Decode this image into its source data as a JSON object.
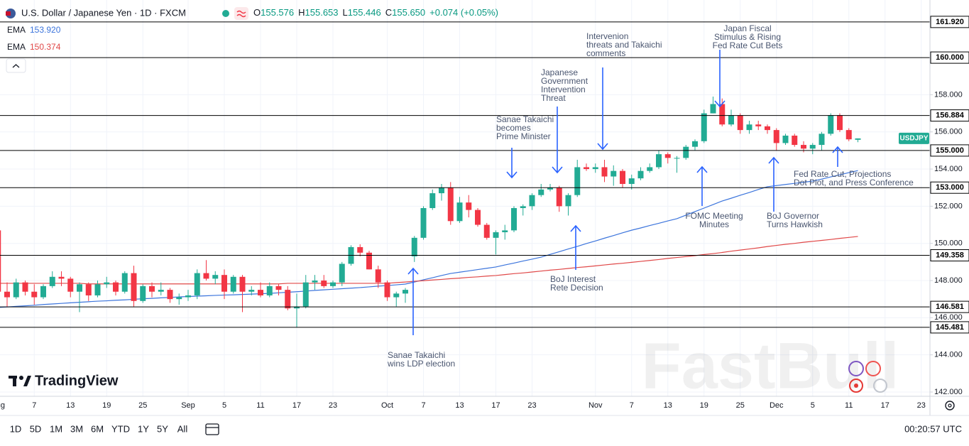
{
  "header": {
    "title": "U.S. Dollar / Japanese Yen · 1D · FXCM",
    "ohlc": [
      {
        "key": "O",
        "value": "155.576"
      },
      {
        "key": "H",
        "value": "155.653"
      },
      {
        "key": "L",
        "value": "155.446"
      },
      {
        "key": "C",
        "value": "155.650"
      }
    ],
    "change": "+0.074 (+0.05%)"
  },
  "logo": "TradingView",
  "watermark": "FastBull",
  "toolbar": {
    "ranges": [
      "1D",
      "5D",
      "1M",
      "3M",
      "6M",
      "YTD",
      "1Y",
      "5Y",
      "All"
    ],
    "clock": "00:20:57 UTC"
  },
  "chart_data": {
    "type": "candlestick",
    "symbol": "USDJPY",
    "up_color": "#22ab94",
    "down_color": "#f23645",
    "ylim": [
      141.77,
      163.1
    ],
    "yticks": [
      {
        "value": 142,
        "label": "142.000"
      },
      {
        "value": 144,
        "label": "144.000"
      },
      {
        "value": 146,
        "label": "146.000"
      },
      {
        "value": 148,
        "label": "148.000"
      },
      {
        "value": 150,
        "label": "150.000"
      },
      {
        "value": 152,
        "label": "152.000"
      },
      {
        "value": 154,
        "label": "154.000"
      },
      {
        "value": 156,
        "label": "156.000"
      },
      {
        "value": 158,
        "label": "158.000"
      }
    ],
    "grid": true,
    "categories": [
      "Aug",
      null,
      null,
      null,
      "7",
      null,
      null,
      null,
      "13",
      null,
      null,
      null,
      "19",
      null,
      null,
      null,
      "25",
      null,
      null,
      null,
      null,
      "Sep",
      null,
      null,
      null,
      "5",
      null,
      null,
      null,
      "11",
      null,
      null,
      null,
      "17",
      null,
      null,
      null,
      "23",
      null,
      null,
      null,
      null,
      null,
      "Oct",
      null,
      null,
      null,
      "7",
      null,
      null,
      null,
      "13",
      null,
      null,
      null,
      "17",
      null,
      null,
      null,
      "23",
      null,
      null,
      null,
      null,
      null,
      null,
      "Nov",
      null,
      null,
      null,
      "7",
      null,
      null,
      null,
      "13",
      null,
      null,
      null,
      "19",
      null,
      null,
      null,
      "25",
      null,
      null,
      null,
      "Dec",
      null,
      null,
      null,
      "5",
      null,
      null,
      null,
      "11",
      null,
      null,
      null,
      "17",
      null,
      null,
      null,
      "23"
    ],
    "open": [
      150.7,
      147.4,
      147.1,
      147.9,
      147.4,
      147.1,
      147.7,
      148.2,
      148.1,
      147.4,
      147.8,
      147.2,
      147.8,
      147.9,
      147.4,
      148.4,
      146.9,
      147.7,
      147.4,
      147.5,
      147.0,
      147.1,
      147.2,
      148.4,
      148.1,
      148.3,
      147.4,
      148.2,
      147.4,
      147.5,
      147.2,
      147.7,
      147.5,
      146.5,
      146.6,
      147.9,
      148.0,
      147.7,
      147.9,
      148.9,
      149.8,
      149.5,
      148.6,
      147.9,
      147.1,
      147.3,
      149.3,
      150.3,
      151.9,
      152.7,
      153.0,
      151.2,
      152.2,
      151.8,
      151.0,
      150.3,
      150.6,
      150.7,
      151.9,
      152.0,
      152.6,
      152.9,
      153.0,
      152.0,
      152.6,
      154.1,
      154.0,
      154.1,
      153.6,
      153.9,
      153.2,
      153.5,
      153.9,
      154.1,
      154.8,
      154.6,
      154.6,
      155.2,
      155.5,
      157.0,
      157.5,
      156.4,
      156.9,
      156.1,
      156.4,
      156.3,
      156.1,
      155.4,
      155.8,
      155.3,
      155.1,
      155.3,
      155.9,
      156.9,
      156.1,
      155.576,
      null,
      null,
      null,
      null,
      null,
      null,
      null
    ],
    "high": [
      150.9,
      147.9,
      148.1,
      148.0,
      147.8,
      147.8,
      148.5,
      148.5,
      148.2,
      147.9,
      147.9,
      148.0,
      148.2,
      148.0,
      148.5,
      148.8,
      147.8,
      147.9,
      147.9,
      147.6,
      147.3,
      147.5,
      148.6,
      149.1,
      148.5,
      148.6,
      148.3,
      148.3,
      147.7,
      147.9,
      147.9,
      147.8,
      147.7,
      147.3,
      148.3,
      148.3,
      148.3,
      148.0,
      149.0,
      149.9,
      149.95,
      149.6,
      148.8,
      148.0,
      147.4,
      147.6,
      150.4,
      152.0,
      152.9,
      153.2,
      153.3,
      152.5,
      152.6,
      151.9,
      151.1,
      150.7,
      151.0,
      152.0,
      152.1,
      152.7,
      153.2,
      153.2,
      153.1,
      152.7,
      154.5,
      154.3,
      154.3,
      154.5,
      154.2,
      154.0,
      153.7,
      154.1,
      154.3,
      155.0,
      154.9,
      154.7,
      155.3,
      155.6,
      157.2,
      157.9,
      157.8,
      157.2,
      157.0,
      156.6,
      156.6,
      156.4,
      156.2,
      155.9,
      155.9,
      155.5,
      155.4,
      156.0,
      157.0,
      157.0,
      156.2,
      155.653,
      null,
      null,
      null,
      null,
      null,
      null,
      null
    ],
    "low": [
      147.3,
      146.6,
      147.0,
      147.2,
      146.7,
      147.0,
      147.6,
      147.7,
      147.1,
      146.3,
      146.9,
      147.1,
      147.6,
      147.2,
      147.3,
      146.6,
      146.8,
      147.1,
      147.2,
      146.8,
      146.7,
      146.9,
      147.0,
      148.0,
      147.8,
      147.0,
      147.3,
      146.3,
      147.2,
      147.1,
      147.1,
      147.2,
      146.4,
      145.48,
      146.5,
      147.5,
      147.6,
      147.6,
      147.7,
      148.8,
      149.3,
      148.6,
      147.6,
      146.9,
      146.6,
      146.8,
      149.0,
      150.2,
      151.8,
      152.3,
      151.0,
      151.1,
      151.4,
      150.9,
      150.2,
      149.4,
      150.2,
      150.6,
      151.5,
      151.8,
      152.5,
      152.8,
      151.7,
      151.5,
      152.5,
      153.9,
      153.8,
      153.3,
      153.1,
      153.0,
      152.9,
      153.4,
      153.8,
      154.0,
      154.3,
      153.8,
      154.5,
      155.0,
      155.4,
      157.0,
      156.3,
      156.3,
      155.9,
      155.9,
      156.1,
      155.9,
      155.0,
      155.3,
      155.2,
      154.9,
      154.8,
      155.0,
      155.8,
      156.0,
      155.5,
      155.446,
      null,
      null,
      null,
      null,
      null,
      null,
      null
    ],
    "close": [
      147.4,
      147.1,
      147.9,
      147.4,
      147.1,
      147.7,
      148.2,
      148.1,
      147.4,
      147.8,
      147.2,
      147.8,
      147.9,
      147.4,
      148.4,
      146.9,
      147.7,
      147.4,
      147.5,
      147.0,
      147.1,
      147.2,
      148.4,
      148.1,
      148.3,
      147.4,
      148.2,
      147.4,
      147.5,
      147.2,
      147.7,
      147.5,
      146.5,
      146.6,
      147.9,
      148.0,
      147.7,
      147.9,
      148.9,
      149.8,
      149.5,
      148.6,
      147.9,
      147.1,
      147.3,
      147.5,
      150.3,
      151.9,
      152.7,
      153.0,
      151.2,
      152.2,
      151.8,
      151.0,
      150.3,
      150.6,
      150.7,
      151.9,
      152.0,
      152.6,
      152.9,
      153.0,
      152.0,
      152.6,
      154.1,
      154.0,
      154.1,
      153.6,
      153.9,
      153.2,
      153.5,
      153.9,
      154.1,
      154.8,
      154.6,
      154.6,
      155.2,
      155.5,
      157.0,
      157.5,
      156.4,
      156.9,
      156.1,
      156.4,
      156.3,
      156.1,
      155.4,
      155.8,
      155.3,
      155.1,
      155.3,
      155.9,
      156.9,
      156.1,
      155.6,
      155.65,
      null,
      null,
      null,
      null,
      null,
      null,
      null
    ],
    "lines": [
      {
        "name": "EMA",
        "legend_value": "153.920",
        "color": "#3b74dc",
        "values": [
          146.55,
          146.58,
          146.61,
          146.64,
          146.67,
          146.71,
          146.74,
          146.77,
          146.8,
          146.83,
          146.86,
          146.89,
          146.91,
          146.94,
          146.96,
          146.99,
          147.02,
          147.04,
          147.07,
          147.09,
          147.12,
          147.14,
          147.16,
          147.18,
          147.2,
          147.22,
          147.23,
          147.25,
          147.27,
          147.29,
          147.31,
          147.34,
          147.37,
          147.4,
          147.43,
          147.47,
          147.5,
          147.53,
          147.56,
          147.59,
          147.62,
          147.66,
          147.7,
          147.73,
          147.77,
          147.81,
          147.92,
          148.04,
          148.15,
          148.27,
          148.38,
          148.45,
          148.52,
          148.59,
          148.66,
          148.73,
          148.84,
          148.94,
          149.05,
          149.15,
          149.26,
          149.41,
          149.55,
          149.7,
          149.84,
          149.99,
          150.13,
          150.28,
          150.42,
          150.57,
          150.71,
          150.83,
          150.96,
          151.08,
          151.21,
          151.33,
          151.52,
          151.71,
          151.9,
          152.09,
          152.28,
          152.43,
          152.59,
          152.74,
          152.9,
          153.05,
          153.11,
          153.17,
          153.23,
          153.29,
          153.35,
          153.46,
          153.58,
          153.69,
          153.81,
          153.92,
          null,
          null,
          null,
          null,
          null,
          null,
          null
        ]
      },
      {
        "name": "EMA",
        "legend_value": "150.374",
        "color": "#e04848",
        "values": [
          147.85,
          147.85,
          147.85,
          147.85,
          147.85,
          147.85,
          147.85,
          147.85,
          147.85,
          147.85,
          147.82,
          147.82,
          147.82,
          147.82,
          147.82,
          147.82,
          147.82,
          147.82,
          147.82,
          147.82,
          147.82,
          147.82,
          147.82,
          147.82,
          147.82,
          147.82,
          147.82,
          147.82,
          147.82,
          147.82,
          147.82,
          147.82,
          147.85,
          147.85,
          147.85,
          147.85,
          147.85,
          147.85,
          147.85,
          147.85,
          147.85,
          147.85,
          147.85,
          147.85,
          147.89,
          147.92,
          147.96,
          147.99,
          148.03,
          148.06,
          148.1,
          148.13,
          148.17,
          148.2,
          148.24,
          148.27,
          148.32,
          148.37,
          148.41,
          148.46,
          148.51,
          148.56,
          148.6,
          148.65,
          148.7,
          148.74,
          148.79,
          148.84,
          148.89,
          148.93,
          148.98,
          149.03,
          149.08,
          149.13,
          149.19,
          149.24,
          149.29,
          149.34,
          149.4,
          149.45,
          149.51,
          149.58,
          149.64,
          149.7,
          149.76,
          149.83,
          149.89,
          149.95,
          150.0,
          150.06,
          150.11,
          150.16,
          150.21,
          150.27,
          150.32,
          150.374,
          null,
          null,
          null,
          null,
          null,
          null,
          null
        ]
      }
    ],
    "levels": [
      {
        "value": 161.92,
        "label": "161.920"
      },
      {
        "value": 160,
        "label": "160.000"
      },
      {
        "value": 156.884,
        "label": "156.884"
      },
      {
        "value": 155,
        "label": "155.000"
      },
      {
        "value": 153,
        "label": "153.000"
      },
      {
        "value": 149.358,
        "label": "149.358"
      },
      {
        "value": 146.581,
        "label": "146.581"
      },
      {
        "value": 145.481,
        "label": "145.481"
      }
    ],
    "annotations": [
      {
        "lines": [
          "Intervenion",
          "threats and Takaichi",
          "comments"
        ]
      },
      {
        "lines": [
          "Japan Fiscal",
          "Stimulus & Rising",
          "Fed Rate Cut Bets"
        ]
      },
      {
        "lines": [
          "Japanese",
          "Government",
          "Intervention",
          "Threat"
        ]
      },
      {
        "lines": [
          "Sanae Takaichi",
          "becomes",
          "Prime Minister"
        ]
      },
      {
        "lines": [
          "Sanae Takaichi",
          "wins LDP election"
        ]
      },
      {
        "lines": [
          "BoJ Interest",
          "Rete Decision"
        ]
      },
      {
        "lines": [
          "FOMC Meeting",
          "Minutes"
        ]
      },
      {
        "lines": [
          "BoJ Governor",
          "Turns Hawkish"
        ]
      },
      {
        "lines": [
          "Fed Rate Cut, Projections",
          "Dot Plot, and Press Conference"
        ]
      }
    ]
  }
}
